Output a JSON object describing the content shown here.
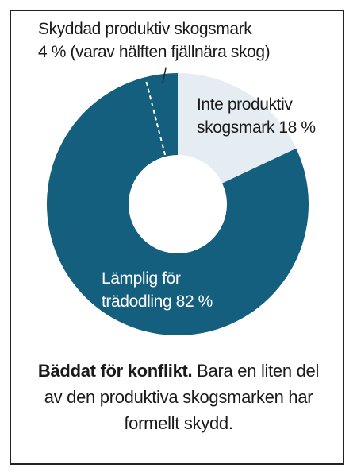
{
  "chart_data": {
    "type": "donut",
    "categories": [
      "Inte produktiv skogsmark",
      "Lämplig för trädodling"
    ],
    "values": [
      18,
      82
    ],
    "value_labels": [
      "18 %",
      "82 %"
    ],
    "colors": [
      "#e5edf3",
      "#135f7d"
    ],
    "subsegment": {
      "name": "Skyddad produktiv skogsmark",
      "value": 4,
      "value_label": "4 %",
      "note": "(varav hälften fjällnära skog)"
    },
    "title": "Bäddat för konflikt.",
    "caption": "Bara en liten del av den produktiva skogsmarken har formellt skydd."
  }
}
